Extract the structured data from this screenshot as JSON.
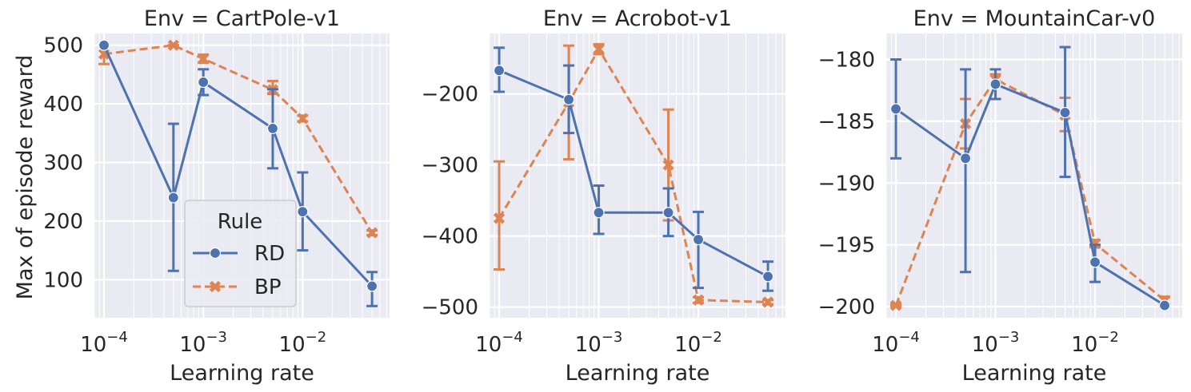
{
  "figure": {
    "ylabel": "Max of episode reward",
    "xlabel": "Learning rate",
    "legend": {
      "title": "Rule",
      "placement": "lower-right of first panel",
      "entries": [
        {
          "name": "RD",
          "color": "#4c72b0",
          "marker": "circle",
          "line": "solid"
        },
        {
          "name": "BP",
          "color": "#dd8452",
          "marker": "x",
          "line": "dashed"
        }
      ]
    }
  },
  "chart_data": [
    {
      "type": "line",
      "title": "Env = CartPole-v1",
      "xlabel": "Learning rate",
      "ylabel": "Max of episode reward",
      "xscale": "log",
      "xlim": [
        8e-05,
        0.075
      ],
      "ylim": [
        35,
        520
      ],
      "xticks": [
        {
          "value": 0.0001,
          "base": "10",
          "exp": "−4"
        },
        {
          "value": 0.001,
          "base": "10",
          "exp": "−3"
        },
        {
          "value": 0.01,
          "base": "10",
          "exp": "−2"
        }
      ],
      "yticks": [
        {
          "value": 100,
          "label": "100"
        },
        {
          "value": 200,
          "label": "200"
        },
        {
          "value": 300,
          "label": "300"
        },
        {
          "value": 400,
          "label": "400"
        },
        {
          "value": 500,
          "label": "500"
        }
      ],
      "grid": true,
      "x": [
        0.0001,
        0.0005,
        0.001,
        0.005,
        0.01,
        0.05
      ],
      "series": [
        {
          "name": "RD",
          "values": [
            500,
            240,
            437,
            358,
            216,
            89
          ],
          "err_low": [
            500,
            115,
            415,
            290,
            150,
            55
          ],
          "err_high": [
            500,
            366,
            459,
            425,
            283,
            113
          ]
        },
        {
          "name": "BP",
          "values": [
            485,
            500,
            477,
            424,
            375,
            180
          ],
          "err_low": [
            468,
            500,
            470,
            417,
            370,
            176
          ],
          "err_high": [
            500,
            500,
            484,
            439,
            380,
            184
          ]
        }
      ]
    },
    {
      "type": "line",
      "title": "Env = Acrobot-v1",
      "xlabel": "Learning rate",
      "ylabel": "",
      "xscale": "log",
      "xlim": [
        8e-05,
        0.075
      ],
      "ylim": [
        -515,
        -115
      ],
      "xticks": [
        {
          "value": 0.0001,
          "base": "10",
          "exp": "−4"
        },
        {
          "value": 0.001,
          "base": "10",
          "exp": "−3"
        },
        {
          "value": 0.01,
          "base": "10",
          "exp": "−2"
        }
      ],
      "yticks": [
        {
          "value": -200,
          "label": "−200"
        },
        {
          "value": -300,
          "label": "−300"
        },
        {
          "value": -400,
          "label": "−400"
        },
        {
          "value": -500,
          "label": "−500"
        }
      ],
      "grid": true,
      "x": [
        0.0001,
        0.0005,
        0.001,
        0.005,
        0.01,
        0.05
      ],
      "series": [
        {
          "name": "RD",
          "values": [
            -167,
            -208,
            -367,
            -367,
            -405,
            -457
          ],
          "err_low": [
            -197,
            -255,
            -397,
            -400,
            -473,
            -477
          ],
          "err_high": [
            -135,
            -160,
            -329,
            -333,
            -366,
            -436
          ]
        },
        {
          "name": "BP",
          "values": [
            -375,
            -212,
            -137,
            -300,
            -490,
            -493
          ],
          "err_low": [
            -447,
            -292,
            -144,
            -378,
            -494,
            -496
          ],
          "err_high": [
            -295,
            -132,
            -130,
            -222,
            -486,
            -490
          ]
        }
      ]
    },
    {
      "type": "line",
      "title": "Env = MountainCar-v0",
      "xlabel": "Learning rate",
      "ylabel": "",
      "xscale": "log",
      "xlim": [
        8e-05,
        0.075
      ],
      "ylim": [
        -200.9,
        -177.9
      ],
      "xticks": [
        {
          "value": 0.0001,
          "base": "10",
          "exp": "−4"
        },
        {
          "value": 0.001,
          "base": "10",
          "exp": "−3"
        },
        {
          "value": 0.01,
          "base": "10",
          "exp": "−2"
        }
      ],
      "yticks": [
        {
          "value": -180,
          "label": "−180"
        },
        {
          "value": -185,
          "label": "−185"
        },
        {
          "value": -190,
          "label": "−190"
        },
        {
          "value": -195,
          "label": "−195"
        },
        {
          "value": -200,
          "label": "−200"
        }
      ],
      "grid": true,
      "x": [
        0.0001,
        0.0005,
        0.001,
        0.005,
        0.01,
        0.05
      ],
      "series": [
        {
          "name": "RD",
          "values": [
            -184,
            -188,
            -182,
            -184.3,
            -196.4,
            -199.9
          ],
          "err_low": [
            -188,
            -197.2,
            -183.2,
            -189.5,
            -198,
            -200
          ],
          "err_high": [
            -180,
            -180.8,
            -180.8,
            -179,
            -195,
            -199.8
          ]
        },
        {
          "name": "BP",
          "values": [
            -199.9,
            -185.2,
            -181.6,
            -184.5,
            -194.9,
            -199.5
          ],
          "err_low": [
            -200,
            -187.2,
            -182,
            -185.8,
            -195.2,
            -199.8
          ],
          "err_high": [
            -199.8,
            -183.2,
            -181.2,
            -183.1,
            -194.6,
            -199.2
          ]
        }
      ]
    }
  ]
}
